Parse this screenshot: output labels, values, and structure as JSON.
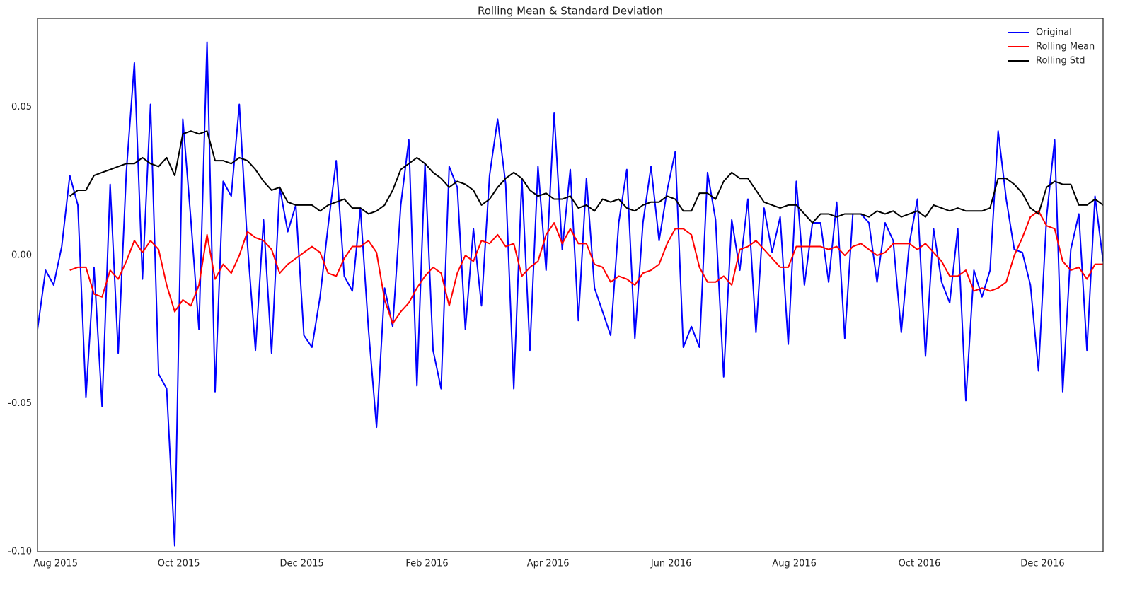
{
  "chart_data": {
    "type": "line",
    "title": "Rolling Mean & Standard Deviation",
    "xlim": [
      0,
      132
    ],
    "xticks": [
      {
        "value": 2.25,
        "label": "Aug 2015"
      },
      {
        "value": 17.5,
        "label": "Oct 2015"
      },
      {
        "value": 32.75,
        "label": "Dec 2015"
      },
      {
        "value": 48.25,
        "label": "Feb 2016"
      },
      {
        "value": 63.25,
        "label": "Apr 2016"
      },
      {
        "value": 78.5,
        "label": "Jun 2016"
      },
      {
        "value": 93.75,
        "label": "Aug 2016"
      },
      {
        "value": 109.25,
        "label": "Oct 2016"
      },
      {
        "value": 124.5,
        "label": "Dec 2016"
      }
    ],
    "ylim": [
      -0.1,
      0.08
    ],
    "yticks": [
      {
        "value": -0.1,
        "label": "-0.10"
      },
      {
        "value": -0.05,
        "label": "-0.05"
      },
      {
        "value": 0,
        "label": "0.00"
      },
      0.05
    ],
    "grid": false,
    "legend": "upper right",
    "series": [
      {
        "name": "Original",
        "color": "#0000ff",
        "values": [
          -0.025,
          -0.005,
          -0.01,
          0.003,
          0.027,
          0.017,
          -0.048,
          -0.004,
          -0.051,
          0.024,
          -0.033,
          0.028,
          0.065,
          -0.008,
          0.051,
          -0.04,
          -0.045,
          -0.098,
          0.046,
          0.012,
          -0.025,
          0.072,
          -0.046,
          0.025,
          0.02,
          0.051,
          0.004,
          -0.032,
          0.012,
          -0.033,
          0.023,
          0.008,
          0.017,
          -0.027,
          -0.031,
          -0.014,
          0.01,
          0.032,
          -0.007,
          -0.012,
          0.016,
          -0.025,
          -0.058,
          -0.011,
          -0.024,
          0.017,
          0.039,
          -0.044,
          0.031,
          -0.032,
          -0.045,
          0.03,
          0.023,
          -0.025,
          0.009,
          -0.017,
          0.027,
          0.046,
          0.024,
          -0.045,
          0.026,
          -0.032,
          0.03,
          -0.005,
          0.048,
          0.002,
          0.029,
          -0.022,
          0.026,
          -0.011,
          -0.019,
          -0.027,
          0.011,
          0.029,
          -0.028,
          0.011,
          0.03,
          0.005,
          0.022,
          0.035,
          -0.031,
          -0.024,
          -0.031,
          0.028,
          0.012,
          -0.041,
          0.012,
          -0.005,
          0.019,
          -0.026,
          0.016,
          0.001,
          0.013,
          -0.03,
          0.025,
          -0.01,
          0.011,
          0.011,
          -0.009,
          0.018,
          -0.028,
          0.014,
          0.014,
          0.011,
          -0.009,
          0.011,
          0.005,
          -0.026,
          0.004,
          0.019,
          -0.034,
          0.009,
          -0.009,
          -0.016,
          0.009,
          -0.049,
          -0.005,
          -0.014,
          -0.005,
          0.042,
          0.019,
          0.002,
          0.001,
          -0.01,
          -0.039,
          0.013,
          0.039,
          -0.046,
          0.002,
          0.014,
          -0.032,
          0.02,
          -0.002
        ]
      },
      {
        "name": "Rolling Mean",
        "color": "#ff0000",
        "values": [
          null,
          null,
          null,
          null,
          -0.005,
          -0.004,
          -0.004,
          -0.013,
          -0.014,
          -0.005,
          -0.008,
          -0.002,
          0.005,
          0.001,
          0.005,
          0.002,
          -0.01,
          -0.019,
          -0.015,
          -0.017,
          -0.01,
          0.007,
          -0.008,
          -0.003,
          -0.006,
          0.0,
          0.008,
          0.006,
          0.005,
          0.002,
          -0.006,
          -0.003,
          -0.001,
          0.001,
          0.003,
          0.001,
          -0.006,
          -0.007,
          -0.001,
          0.003,
          0.003,
          0.005,
          0.001,
          -0.015,
          -0.023,
          -0.019,
          -0.016,
          -0.011,
          -0.007,
          -0.004,
          -0.006,
          -0.017,
          -0.006,
          0.0,
          -0.002,
          0.005,
          0.004,
          0.007,
          0.003,
          0.004,
          -0.007,
          -0.004,
          -0.002,
          0.007,
          0.011,
          0.004,
          0.009,
          0.004,
          0.004,
          -0.003,
          -0.004,
          -0.009,
          -0.007,
          -0.008,
          -0.01,
          -0.006,
          -0.005,
          -0.003,
          0.004,
          0.009,
          0.009,
          0.007,
          -0.004,
          -0.009,
          -0.009,
          -0.007,
          -0.01,
          0.002,
          0.003,
          0.005,
          0.002,
          -0.001,
          -0.004,
          -0.004,
          0.003,
          0.003,
          0.003,
          0.003,
          0.002,
          0.003,
          0.0,
          0.003,
          0.004,
          0.002,
          0.0,
          0.001,
          0.004,
          0.004,
          0.004,
          0.002,
          0.004,
          0.001,
          -0.002,
          -0.007,
          -0.007,
          -0.005,
          -0.012,
          -0.011,
          -0.012,
          -0.011,
          -0.009,
          0.0,
          0.006,
          0.013,
          0.015,
          0.01,
          0.009,
          -0.002,
          -0.005,
          -0.004,
          -0.008,
          -0.003,
          -0.003
        ]
      },
      {
        "name": "Rolling Std",
        "color": "#000000",
        "values": [
          null,
          null,
          null,
          null,
          0.02,
          0.022,
          0.022,
          0.027,
          0.028,
          0.029,
          0.03,
          0.031,
          0.031,
          0.033,
          0.031,
          0.03,
          0.033,
          0.027,
          0.041,
          0.042,
          0.041,
          0.042,
          0.032,
          0.032,
          0.031,
          0.033,
          0.032,
          0.029,
          0.025,
          0.022,
          0.023,
          0.018,
          0.017,
          0.017,
          0.017,
          0.015,
          0.017,
          0.018,
          0.019,
          0.016,
          0.016,
          0.014,
          0.015,
          0.017,
          0.022,
          0.029,
          0.031,
          0.033,
          0.031,
          0.028,
          0.026,
          0.023,
          0.025,
          0.024,
          0.022,
          0.017,
          0.019,
          0.023,
          0.026,
          0.028,
          0.026,
          0.022,
          0.02,
          0.021,
          0.019,
          0.019,
          0.02,
          0.016,
          0.017,
          0.015,
          0.019,
          0.018,
          0.019,
          0.016,
          0.015,
          0.017,
          0.018,
          0.018,
          0.02,
          0.019,
          0.015,
          0.015,
          0.021,
          0.021,
          0.019,
          0.025,
          0.028,
          0.026,
          0.026,
          0.022,
          0.018,
          0.017,
          0.016,
          0.017,
          0.017,
          0.014,
          0.011,
          0.014,
          0.014,
          0.013,
          0.014,
          0.014,
          0.014,
          0.013,
          0.015,
          0.014,
          0.015,
          0.013,
          0.014,
          0.015,
          0.013,
          0.017,
          0.016,
          0.015,
          0.016,
          0.015,
          0.015,
          0.015,
          0.016,
          0.026,
          0.026,
          0.024,
          0.021,
          0.016,
          0.014,
          0.023,
          0.025,
          0.024,
          0.024,
          0.017,
          0.017,
          0.019,
          0.017
        ]
      }
    ]
  }
}
